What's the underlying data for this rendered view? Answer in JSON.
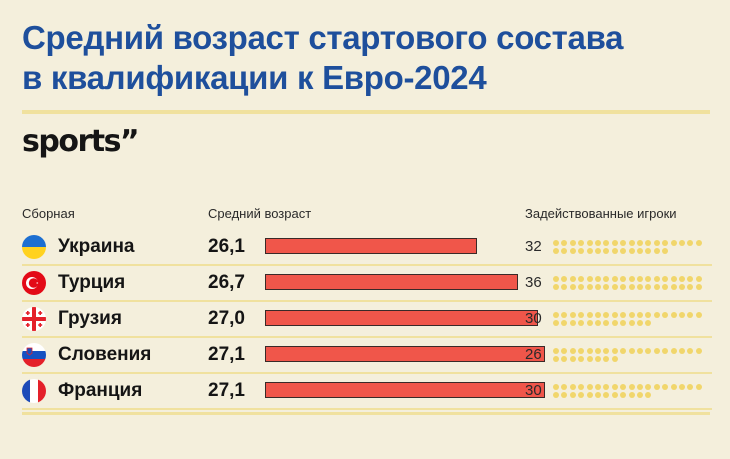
{
  "title": {
    "line1": "Средний возраст стартового состава",
    "line2": "в квалификации к Евро-2024"
  },
  "logo": "sports”",
  "headers": {
    "team": "Сборная",
    "age": "Средний возраст",
    "players": "Задействованные игроки"
  },
  "colors": {
    "title": "#1e4f9c",
    "bar": "#f0564a",
    "dot": "#f1d66b",
    "rule": "#f0e19e",
    "background": "#f4efdc"
  },
  "chart_data": {
    "type": "bar",
    "orientation": "horizontal",
    "categories": [
      "Украина",
      "Турция",
      "Грузия",
      "Словения",
      "Франция"
    ],
    "series": [
      {
        "name": "Средний возраст",
        "values": [
          26.1,
          26.7,
          27.0,
          27.1,
          27.1
        ],
        "labels": [
          "26,1",
          "26,7",
          "27,0",
          "27,1",
          "27,1"
        ]
      },
      {
        "name": "Задействованные игроки",
        "values": [
          32,
          36,
          30,
          26,
          30
        ]
      }
    ],
    "flags": [
      "flag-ukraine-icon",
      "flag-turkey-icon",
      "flag-georgia-icon",
      "flag-slovenia-icon",
      "flag-france-icon"
    ]
  },
  "rows": [
    {
      "country": "Украина",
      "age": "26,1",
      "players": "32"
    },
    {
      "country": "Турция",
      "age": "26,7",
      "players": "36"
    },
    {
      "country": "Грузия",
      "age": "27,0",
      "players": "30"
    },
    {
      "country": "Словения",
      "age": "27,1",
      "players": "26"
    },
    {
      "country": "Франция",
      "age": "27,1",
      "players": "30"
    }
  ]
}
